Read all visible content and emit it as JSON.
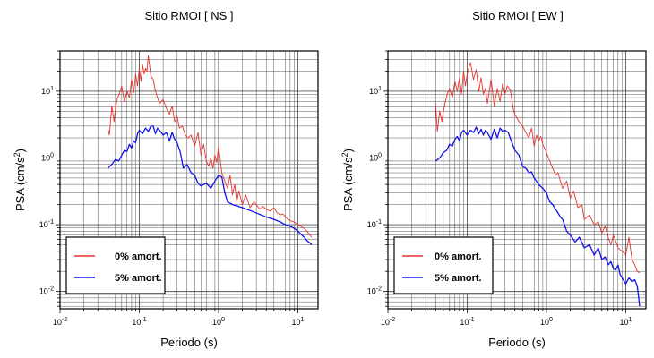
{
  "colors": {
    "undamped": "#e8322d",
    "damped": "#1111ee",
    "grid": "#555555",
    "frame": "#000000"
  },
  "chart_data": [
    {
      "type": "line",
      "title": "Sitio RMOI [ NS ]",
      "xlabel": "Periodo (s)",
      "ylabel": "PSA (cm/s²)",
      "xscale": "log",
      "yscale": "log",
      "xlim": [
        0.01,
        18
      ],
      "ylim": [
        0.0055,
        40
      ],
      "x_ticks": [
        {
          "base": "10",
          "exp": "-2"
        },
        {
          "base": "10",
          "exp": "-1"
        },
        {
          "base": "10",
          "exp": "0"
        },
        {
          "base": "10",
          "exp": "1"
        }
      ],
      "y_ticks": [
        {
          "base": "10",
          "exp": "-2"
        },
        {
          "base": "10",
          "exp": "-1"
        },
        {
          "base": "10",
          "exp": "0"
        },
        {
          "base": "10",
          "exp": "1"
        }
      ],
      "grid": true,
      "legend_position": "bottom-left",
      "series": [
        {
          "name": "0% amort.",
          "color_key": "undamped",
          "x": [
            0.04,
            0.042,
            0.045,
            0.048,
            0.05,
            0.053,
            0.056,
            0.06,
            0.065,
            0.07,
            0.075,
            0.08,
            0.085,
            0.09,
            0.095,
            0.1,
            0.105,
            0.11,
            0.115,
            0.12,
            0.125,
            0.13,
            0.14,
            0.15,
            0.16,
            0.17,
            0.18,
            0.2,
            0.22,
            0.24,
            0.26,
            0.28,
            0.3,
            0.32,
            0.35,
            0.38,
            0.41,
            0.45,
            0.5,
            0.55,
            0.6,
            0.65,
            0.7,
            0.75,
            0.8,
            0.85,
            0.9,
            0.95,
            1.0,
            1.1,
            1.2,
            1.3,
            1.4,
            1.5,
            1.6,
            1.7,
            1.8,
            2.0,
            2.2,
            2.5,
            2.8,
            3.0,
            3.3,
            3.6,
            4.0,
            4.5,
            5.0,
            5.5,
            6.0,
            6.5,
            7.0,
            7.5,
            8.0,
            9.0,
            10.0,
            11.0,
            12.0,
            13.0,
            14.0,
            15.0
          ],
          "y": [
            2.8,
            2.2,
            6.0,
            3.5,
            5.5,
            8.0,
            9.0,
            12.0,
            7.0,
            10.0,
            8.0,
            15.0,
            9.5,
            18.0,
            12.0,
            22.0,
            14.0,
            25.0,
            18.0,
            22.0,
            20.0,
            34.0,
            17.0,
            15.0,
            10.0,
            8.0,
            6.5,
            7.5,
            5.5,
            4.5,
            6.0,
            3.5,
            4.2,
            2.8,
            3.0,
            2.2,
            2.0,
            2.2,
            1.5,
            2.4,
            1.1,
            1.6,
            0.9,
            0.75,
            1.0,
            0.7,
            1.1,
            0.85,
            1.5,
            0.6,
            0.45,
            0.35,
            0.55,
            0.28,
            0.4,
            0.22,
            0.32,
            0.2,
            0.28,
            0.18,
            0.22,
            0.2,
            0.17,
            0.19,
            0.17,
            0.16,
            0.18,
            0.15,
            0.14,
            0.145,
            0.13,
            0.12,
            0.115,
            0.11,
            0.1,
            0.095,
            0.088,
            0.08,
            0.072,
            0.065
          ]
        },
        {
          "name": "5% amort.",
          "color_key": "damped",
          "x": [
            0.04,
            0.045,
            0.05,
            0.055,
            0.06,
            0.065,
            0.07,
            0.075,
            0.08,
            0.085,
            0.09,
            0.095,
            0.1,
            0.11,
            0.12,
            0.13,
            0.14,
            0.15,
            0.16,
            0.17,
            0.18,
            0.2,
            0.22,
            0.24,
            0.26,
            0.28,
            0.3,
            0.33,
            0.36,
            0.4,
            0.45,
            0.5,
            0.55,
            0.6,
            0.7,
            0.8,
            0.9,
            1.0,
            1.1,
            1.2,
            1.3,
            1.5,
            2.0,
            3.0,
            4.0,
            5.0,
            6.0,
            7.0,
            8.0,
            9.0,
            10.0,
            11.0,
            12.0,
            13.0,
            14.0,
            15.0
          ],
          "y": [
            0.7,
            0.8,
            0.95,
            0.9,
            1.1,
            1.3,
            1.25,
            1.6,
            1.4,
            1.8,
            1.7,
            2.3,
            2.6,
            2.3,
            2.8,
            2.5,
            3.0,
            3.0,
            2.3,
            2.8,
            2.6,
            2.2,
            2.4,
            1.8,
            2.4,
            1.9,
            1.7,
            1.2,
            0.7,
            0.8,
            0.6,
            0.55,
            0.42,
            0.38,
            0.42,
            0.35,
            0.45,
            0.55,
            0.52,
            0.3,
            0.22,
            0.2,
            0.18,
            0.15,
            0.13,
            0.12,
            0.11,
            0.1,
            0.095,
            0.088,
            0.08,
            0.072,
            0.065,
            0.058,
            0.054,
            0.05
          ]
        }
      ]
    },
    {
      "type": "line",
      "title": "Sitio RMOI [ EW ]",
      "xlabel": "Periodo (s)",
      "ylabel": "PSA (cm/s²)",
      "xscale": "log",
      "yscale": "log",
      "xlim": [
        0.01,
        18
      ],
      "ylim": [
        0.0055,
        40
      ],
      "x_ticks": [
        {
          "base": "10",
          "exp": "-2"
        },
        {
          "base": "10",
          "exp": "-1"
        },
        {
          "base": "10",
          "exp": "0"
        },
        {
          "base": "10",
          "exp": "1"
        }
      ],
      "y_ticks": [
        {
          "base": "10",
          "exp": "-2"
        },
        {
          "base": "10",
          "exp": "-1"
        },
        {
          "base": "10",
          "exp": "0"
        },
        {
          "base": "10",
          "exp": "1"
        }
      ],
      "grid": true,
      "legend_position": "bottom-left",
      "series": [
        {
          "name": "0% amort.",
          "color_key": "undamped",
          "x": [
            0.04,
            0.042,
            0.045,
            0.048,
            0.05,
            0.053,
            0.056,
            0.06,
            0.065,
            0.07,
            0.075,
            0.08,
            0.085,
            0.09,
            0.095,
            0.1,
            0.11,
            0.12,
            0.13,
            0.14,
            0.15,
            0.16,
            0.17,
            0.18,
            0.2,
            0.22,
            0.24,
            0.26,
            0.28,
            0.3,
            0.32,
            0.35,
            0.38,
            0.4,
            0.45,
            0.5,
            0.55,
            0.6,
            0.65,
            0.7,
            0.75,
            0.8,
            0.85,
            0.9,
            1.0,
            1.1,
            1.2,
            1.3,
            1.4,
            1.5,
            1.6,
            1.8,
            2.0,
            2.2,
            2.5,
            2.8,
            3.0,
            3.5,
            4.0,
            4.5,
            5.0,
            5.5,
            6.0,
            6.5,
            7.0,
            8.0,
            9.0,
            10.0,
            11.0,
            12.0,
            13.0,
            14.0,
            15.0
          ],
          "y": [
            6.5,
            2.5,
            5.0,
            3.5,
            4.8,
            7.0,
            9.0,
            11.0,
            8.0,
            14.0,
            10.0,
            16.0,
            9.0,
            20.0,
            12.0,
            18.0,
            27.0,
            15.0,
            21.0,
            10.0,
            16.0,
            9.0,
            11.0,
            6.5,
            15.0,
            6.0,
            11.0,
            7.0,
            13.0,
            9.0,
            12.0,
            10.5,
            5.5,
            4.5,
            3.5,
            3.0,
            2.4,
            2.0,
            2.8,
            1.5,
            2.2,
            1.8,
            2.1,
            1.6,
            1.2,
            0.9,
            0.7,
            0.55,
            0.6,
            0.45,
            0.35,
            0.45,
            0.25,
            0.32,
            0.18,
            0.2,
            0.12,
            0.14,
            0.1,
            0.11,
            0.075,
            0.095,
            0.065,
            0.05,
            0.07,
            0.045,
            0.04,
            0.035,
            0.065,
            0.03,
            0.025,
            0.02,
            0.019
          ]
        },
        {
          "name": "5% amort.",
          "color_key": "damped",
          "x": [
            0.04,
            0.045,
            0.05,
            0.055,
            0.06,
            0.065,
            0.07,
            0.075,
            0.08,
            0.085,
            0.09,
            0.1,
            0.11,
            0.12,
            0.13,
            0.14,
            0.15,
            0.16,
            0.17,
            0.18,
            0.2,
            0.22,
            0.24,
            0.26,
            0.28,
            0.3,
            0.33,
            0.36,
            0.4,
            0.45,
            0.5,
            0.55,
            0.6,
            0.65,
            0.7,
            0.8,
            0.9,
            1.0,
            1.1,
            1.2,
            1.3,
            1.4,
            1.5,
            1.6,
            1.8,
            2.0,
            2.3,
            2.6,
            3.0,
            3.5,
            4.0,
            4.5,
            5.0,
            5.5,
            6.0,
            6.5,
            7.0,
            7.5,
            8.0,
            8.5,
            9.0,
            10.0,
            11.0,
            12.0,
            13.0,
            14.0,
            15.0
          ],
          "y": [
            0.9,
            1.0,
            1.2,
            1.3,
            1.6,
            1.5,
            1.9,
            2.1,
            1.8,
            2.4,
            2.6,
            2.2,
            2.6,
            2.4,
            2.9,
            2.3,
            2.7,
            2.2,
            2.6,
            2.4,
            1.9,
            2.7,
            2.0,
            2.8,
            2.5,
            2.6,
            2.4,
            1.8,
            1.3,
            1.1,
            0.75,
            0.7,
            0.6,
            0.62,
            0.5,
            0.4,
            0.35,
            0.3,
            0.22,
            0.2,
            0.17,
            0.15,
            0.13,
            0.12,
            0.08,
            0.07,
            0.055,
            0.065,
            0.045,
            0.05,
            0.035,
            0.045,
            0.03,
            0.033,
            0.025,
            0.028,
            0.022,
            0.021,
            0.025,
            0.018,
            0.016,
            0.013,
            0.016,
            0.014,
            0.015,
            0.012,
            0.006
          ]
        }
      ]
    }
  ]
}
